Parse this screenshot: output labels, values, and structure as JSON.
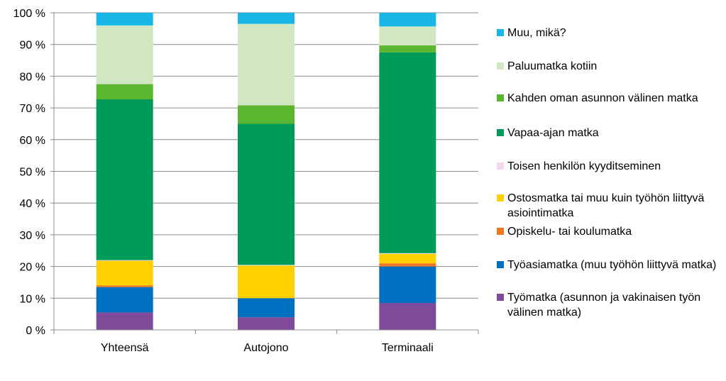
{
  "chart_data": {
    "type": "bar",
    "stacked": true,
    "categories": [
      "Yhteensä",
      "Autojono",
      "Terminaali"
    ],
    "ylim": [
      0,
      100
    ],
    "yticks": [
      "0 %",
      "10 %",
      "20 %",
      "30 %",
      "40 %",
      "50 %",
      "60 %",
      "70 %",
      "80 %",
      "90 %",
      "100 %"
    ],
    "grid": true,
    "legend_position": "right",
    "series": [
      {
        "name": "Työmatka (asunnon ja vakinaisen työn välinen matka)",
        "color": "#7f4a9a",
        "values": [
          5.5,
          4,
          8.5
        ]
      },
      {
        "name": "Työasiamatka (muu työhön liittyvä matka)",
        "color": "#0070c0",
        "values": [
          8,
          6,
          11.5
        ]
      },
      {
        "name": "Opiskelu- tai koulumatka",
        "color": "#f07822",
        "values": [
          0.5,
          0,
          1
        ]
      },
      {
        "name": "Ostosmatka tai muu kuin työhön liittyvä asiointimatka",
        "color": "#ffd000",
        "values": [
          7.8,
          10.3,
          3
        ]
      },
      {
        "name": "Toisen henkilön kyyditseminen",
        "color": "#f2d9ee",
        "values": [
          0.2,
          0.2,
          0.2
        ]
      },
      {
        "name": "Vapaa-ajan matka",
        "color": "#009a58",
        "values": [
          50.7,
          44.5,
          63.3
        ]
      },
      {
        "name": "Kahden oman asunnon välinen matka",
        "color": "#5ab52f",
        "values": [
          4.8,
          5.8,
          2.2
        ]
      },
      {
        "name": "Paluumatka kotiin",
        "color": "#d0e7c2",
        "values": [
          18.5,
          25.7,
          6
        ]
      },
      {
        "name": "Muu, mikä?",
        "color": "#18b6e6",
        "values": [
          4,
          3.5,
          4.3
        ]
      }
    ],
    "legend_order": [
      8,
      7,
      6,
      5,
      4,
      3,
      2,
      1,
      0
    ]
  }
}
